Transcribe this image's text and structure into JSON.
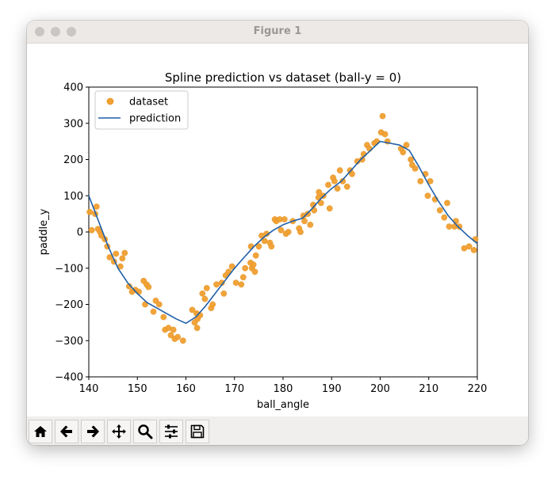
{
  "window": {
    "title": "Figure 1"
  },
  "toolbar": {
    "buttons": [
      {
        "icon": "home-icon"
      },
      {
        "icon": "arrow-left-icon"
      },
      {
        "icon": "arrow-right-icon"
      },
      {
        "icon": "move-icon"
      },
      {
        "icon": "zoom-icon"
      },
      {
        "icon": "sliders-icon"
      },
      {
        "icon": "save-icon"
      }
    ]
  },
  "chart_data": {
    "type": "scatter",
    "title": "Spline prediction vs dataset (ball-y = 0)",
    "xlabel": "ball_angle",
    "ylabel": "paddle_y",
    "xlim": [
      140,
      220
    ],
    "ylim": [
      -400,
      400
    ],
    "xticks": [
      "140",
      "150",
      "160",
      "170",
      "180",
      "190",
      "200",
      "210",
      "220"
    ],
    "yticks": [
      "400",
      "300",
      "200",
      "100",
      "0",
      "−100",
      "−200",
      "−300",
      "−400"
    ],
    "xtick_values": [
      140,
      150,
      160,
      170,
      180,
      190,
      200,
      210,
      220
    ],
    "ytick_values": [
      400,
      300,
      200,
      100,
      0,
      -100,
      -200,
      -300,
      -400
    ],
    "grid": false,
    "legend_position": "top-left",
    "colors": {
      "dataset": "#f0a030",
      "prediction": "#1f5fa8"
    },
    "series": [
      {
        "name": "dataset",
        "kind": "scatter",
        "points": [
          [
            140.2,
            55
          ],
          [
            140.6,
            5
          ],
          [
            141.3,
            50
          ],
          [
            141.6,
            70
          ],
          [
            141.9,
            8
          ],
          [
            142.3,
            0
          ],
          [
            142.6,
            -10
          ],
          [
            143.3,
            -20
          ],
          [
            143.8,
            -40
          ],
          [
            144.3,
            -70
          ],
          [
            145.2,
            -82
          ],
          [
            145.6,
            -60
          ],
          [
            146.5,
            -95
          ],
          [
            146.9,
            -73
          ],
          [
            147.4,
            -58
          ],
          [
            148.3,
            -150
          ],
          [
            148.9,
            -165
          ],
          [
            149.6,
            -160
          ],
          [
            150.3,
            -165
          ],
          [
            151.3,
            -135
          ],
          [
            151.6,
            -200
          ],
          [
            151.9,
            -145
          ],
          [
            152.3,
            -152
          ],
          [
            153.3,
            -220
          ],
          [
            153.8,
            -190
          ],
          [
            154.5,
            -200
          ],
          [
            155.4,
            -235
          ],
          [
            155.7,
            -270
          ],
          [
            156.4,
            -265
          ],
          [
            156.9,
            -285
          ],
          [
            157.4,
            -270
          ],
          [
            157.7,
            -295
          ],
          [
            158.3,
            -290
          ],
          [
            159.4,
            -300
          ],
          [
            161.3,
            -215
          ],
          [
            161.8,
            -250
          ],
          [
            162.2,
            -225
          ],
          [
            162.3,
            -265
          ],
          [
            162.4,
            -240
          ],
          [
            162.9,
            -230
          ],
          [
            163.4,
            -170
          ],
          [
            163.9,
            -185
          ],
          [
            164.3,
            -155
          ],
          [
            165.2,
            -210
          ],
          [
            165.5,
            -200
          ],
          [
            166.3,
            -145
          ],
          [
            167.4,
            -140
          ],
          [
            167.8,
            -170
          ],
          [
            168.2,
            -120
          ],
          [
            168.8,
            -110
          ],
          [
            169.5,
            -95
          ],
          [
            170.3,
            -140
          ],
          [
            171.4,
            -145
          ],
          [
            171.8,
            -125
          ],
          [
            172.2,
            -100
          ],
          [
            173.3,
            -85
          ],
          [
            173.4,
            -40
          ],
          [
            173.6,
            -100
          ],
          [
            173.9,
            -90
          ],
          [
            174.2,
            -110
          ],
          [
            174.4,
            -65
          ],
          [
            175.0,
            -40
          ],
          [
            175.6,
            -10
          ],
          [
            176.2,
            -25
          ],
          [
            176.6,
            -5
          ],
          [
            177.3,
            -30
          ],
          [
            177.6,
            -40
          ],
          [
            178.3,
            35
          ],
          [
            178.6,
            30
          ],
          [
            179.3,
            35
          ],
          [
            179.6,
            5
          ],
          [
            180.3,
            35
          ],
          [
            180.6,
            -5
          ],
          [
            181.1,
            0
          ],
          [
            182.0,
            30
          ],
          [
            183.3,
            10
          ],
          [
            183.6,
            0
          ],
          [
            184.2,
            45
          ],
          [
            184.4,
            30
          ],
          [
            185.1,
            50
          ],
          [
            185.6,
            20
          ],
          [
            186.2,
            75
          ],
          [
            186.4,
            60
          ],
          [
            187.3,
            95
          ],
          [
            187.4,
            110
          ],
          [
            187.8,
            80
          ],
          [
            188.3,
            100
          ],
          [
            189.3,
            130
          ],
          [
            189.6,
            65
          ],
          [
            190.3,
            150
          ],
          [
            190.6,
            140
          ],
          [
            191.2,
            120
          ],
          [
            191.7,
            170
          ],
          [
            192.3,
            140
          ],
          [
            193.2,
            125
          ],
          [
            193.8,
            170
          ],
          [
            194.2,
            160
          ],
          [
            195.3,
            195
          ],
          [
            196.3,
            200
          ],
          [
            196.6,
            215
          ],
          [
            197.3,
            240
          ],
          [
            197.8,
            230
          ],
          [
            198.8,
            245
          ],
          [
            199.3,
            250
          ],
          [
            200.2,
            275
          ],
          [
            200.5,
            320
          ],
          [
            201.0,
            270
          ],
          [
            201.5,
            250
          ],
          [
            204.3,
            230
          ],
          [
            204.7,
            220
          ],
          [
            205.4,
            240
          ],
          [
            206.3,
            200
          ],
          [
            206.6,
            185
          ],
          [
            207.2,
            175
          ],
          [
            208.3,
            140
          ],
          [
            209.3,
            160
          ],
          [
            209.8,
            100
          ],
          [
            210.3,
            140
          ],
          [
            211.3,
            90
          ],
          [
            212.3,
            60
          ],
          [
            213.2,
            40
          ],
          [
            213.8,
            80
          ],
          [
            214.2,
            15
          ],
          [
            215.3,
            15
          ],
          [
            215.6,
            30
          ],
          [
            216.3,
            15
          ],
          [
            217.3,
            -45
          ],
          [
            218.3,
            -40
          ],
          [
            219.3,
            -50
          ],
          [
            219.6,
            -20
          ]
        ]
      },
      {
        "name": "prediction",
        "kind": "line",
        "points": [
          [
            140,
            100
          ],
          [
            142,
            30
          ],
          [
            144,
            -40
          ],
          [
            146,
            -100
          ],
          [
            148,
            -140
          ],
          [
            150,
            -170
          ],
          [
            152,
            -195
          ],
          [
            154,
            -210
          ],
          [
            156,
            -225
          ],
          [
            158,
            -240
          ],
          [
            160,
            -252
          ],
          [
            162,
            -235
          ],
          [
            164,
            -205
          ],
          [
            166,
            -170
          ],
          [
            168,
            -135
          ],
          [
            170,
            -100
          ],
          [
            172,
            -70
          ],
          [
            174,
            -40
          ],
          [
            176,
            -15
          ],
          [
            178,
            5
          ],
          [
            180,
            20
          ],
          [
            182,
            30
          ],
          [
            184,
            38
          ],
          [
            186,
            65
          ],
          [
            188,
            95
          ],
          [
            190,
            120
          ],
          [
            192,
            140
          ],
          [
            194,
            170
          ],
          [
            196,
            200
          ],
          [
            198,
            225
          ],
          [
            200,
            250
          ],
          [
            202,
            245
          ],
          [
            204,
            240
          ],
          [
            206,
            225
          ],
          [
            208,
            180
          ],
          [
            210,
            130
          ],
          [
            212,
            85
          ],
          [
            214,
            45
          ],
          [
            216,
            15
          ],
          [
            218,
            -10
          ],
          [
            220,
            -32
          ]
        ]
      }
    ]
  }
}
